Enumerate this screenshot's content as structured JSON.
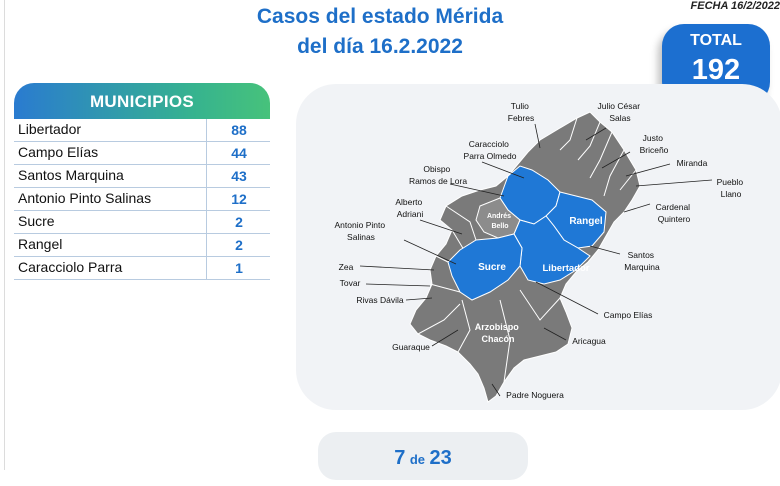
{
  "header": {
    "title_line1": "Casos del estado Mérida",
    "title_line2": "del día 16.2.2022",
    "fecha": "FECHA 16/2/2022"
  },
  "total": {
    "label": "TOTAL",
    "value": "192"
  },
  "municipios": {
    "header": "MUNICIPIOS",
    "rows": [
      {
        "name": "Libertador",
        "value": "88"
      },
      {
        "name": "Campo Elías",
        "value": "44"
      },
      {
        "name": "Santos Marquina",
        "value": "43"
      },
      {
        "name": "Antonio Pinto Salinas",
        "value": "12"
      },
      {
        "name": "Sucre",
        "value": "2"
      },
      {
        "name": "Rangel",
        "value": "2"
      },
      {
        "name": "Caracciolo Parra",
        "value": "1"
      }
    ]
  },
  "map": {
    "highlight_color": "#1f78d6",
    "base_color": "#7a7a7a",
    "labels": {
      "tulio_febres": [
        "Tulio",
        "Febres"
      ],
      "julio_cesar_salas": [
        "Julio César",
        "Salas"
      ],
      "justo_briceno": [
        "Justo",
        "Briceño"
      ],
      "caracciolo_parra_olmedo": [
        "Caracciolo",
        "Parra Olmedo"
      ],
      "miranda": [
        "Miranda"
      ],
      "pueblo_llano": [
        "Pueblo",
        "Llano"
      ],
      "obispo_ramos_de_lora": [
        "Obispo",
        "Ramos de Lora"
      ],
      "cardenal_quintero": [
        "Cardenal",
        "Quintero"
      ],
      "alberto_adriani": [
        "Alberto",
        "Adriani"
      ],
      "andres_bello": [
        "Andrés",
        "Bello"
      ],
      "rangel": [
        "Rangel"
      ],
      "antonio_pinto_salinas": [
        "Antonio Pinto",
        "Salinas"
      ],
      "santos_marquina": [
        "Santos",
        "Marquina"
      ],
      "sucre": [
        "Sucre"
      ],
      "libertador": [
        "Libertador"
      ],
      "zea": [
        "Zea"
      ],
      "tovar": [
        "Tovar"
      ],
      "rivas_davila": [
        "Rivas Dávila"
      ],
      "campo_elias": [
        "Campo Elías"
      ],
      "arzobispo_chacon": [
        "Arzobispo",
        "Chacón"
      ],
      "guaraque": [
        "Guaraque"
      ],
      "aricagua": [
        "Aricagua"
      ],
      "padre_noguera": [
        "Padre Noguera"
      ]
    }
  },
  "pagination": {
    "current": "7",
    "separator": "de",
    "total": "23"
  }
}
